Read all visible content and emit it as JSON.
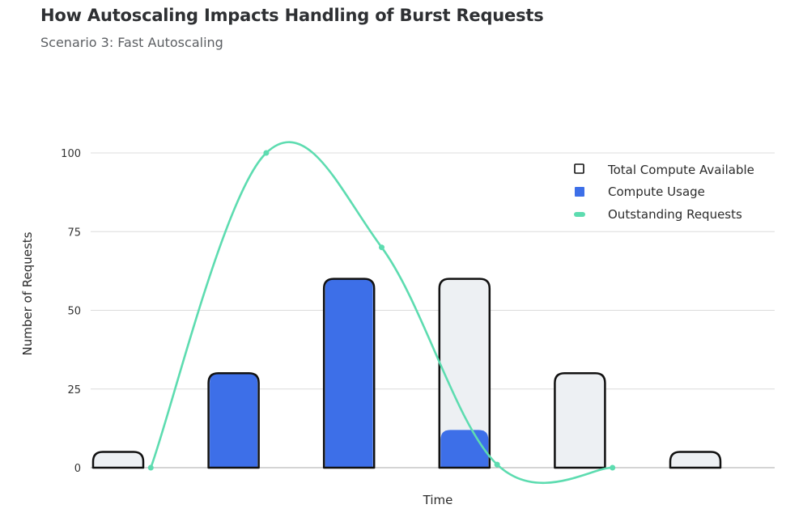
{
  "title": "How Autoscaling Impacts Handling of Burst Requests",
  "subtitle": "Scenario 3: Fast Autoscaling",
  "chart_data": {
    "type": "bar",
    "title": "How Autoscaling Impacts Handling of Burst Requests",
    "subtitle": "Scenario 3: Fast Autoscaling",
    "xlabel": "Time",
    "ylabel": "Number of Requests",
    "ylim": [
      0,
      100
    ],
    "yticks": [
      "0",
      "25",
      "50",
      "75",
      "100"
    ],
    "grid": true,
    "legend_position": "top-right",
    "categories": [
      "",
      "",
      "",
      "",
      "",
      ""
    ],
    "series": [
      {
        "name": "Total Compute Available",
        "kind": "bar",
        "color": "#edf0f3",
        "stroke": "#111111",
        "values": [
          5,
          30,
          60,
          60,
          30,
          5
        ]
      },
      {
        "name": "Compute Usage",
        "kind": "bar",
        "color": "#3d6fe8",
        "values": [
          0,
          30,
          60,
          12,
          0,
          0
        ]
      },
      {
        "name": "Outstanding Requests",
        "kind": "line",
        "color": "#5ddcb0",
        "x": [
          0.5,
          1.5,
          2.5,
          3.5,
          4.5
        ],
        "values": [
          0,
          100,
          70,
          1,
          0
        ]
      }
    ]
  }
}
